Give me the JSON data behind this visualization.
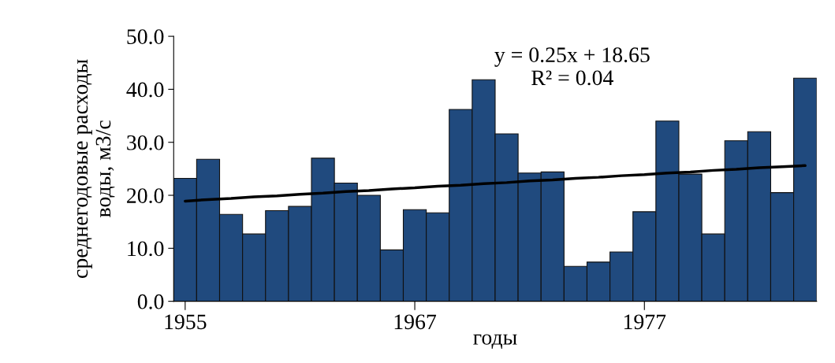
{
  "chart_data": {
    "type": "bar",
    "xlabel": "годы",
    "ylabel": "среднегодовые расходы\nводы, м3/с",
    "categories": [
      "1955",
      null,
      null,
      null,
      null,
      null,
      null,
      null,
      null,
      null,
      "1967",
      null,
      null,
      null,
      null,
      null,
      null,
      null,
      null,
      null,
      "1977",
      null,
      null,
      null,
      null,
      null,
      null,
      null
    ],
    "series": [
      {
        "color": "#204a7e",
        "values": [
          23.2,
          26.8,
          16.4,
          12.7,
          17.1,
          17.9,
          27.0,
          22.3,
          20.0,
          9.7,
          17.3,
          16.7,
          36.2,
          41.8,
          31.6,
          24.2,
          24.4,
          6.6,
          7.4,
          9.3,
          16.9,
          34.0,
          24.0,
          12.7,
          30.3,
          32.0,
          20.5,
          42.1
        ]
      },
      {
        "type": "line",
        "color": "#000000",
        "values": [
          18.9,
          19.2,
          19.4,
          19.7,
          19.9,
          20.2,
          20.4,
          20.7,
          20.9,
          21.2,
          21.4,
          21.7,
          21.9,
          22.2,
          22.4,
          22.7,
          22.9,
          23.2,
          23.4,
          23.7,
          23.9,
          24.2,
          24.4,
          24.7,
          24.9,
          25.2,
          25.4,
          25.6
        ]
      }
    ],
    "annotations": [
      "y = 0.25x + 18.65\nR² = 0.04"
    ],
    "ylim": [
      0,
      50
    ],
    "yticks": [
      {
        "value": 0,
        "label": "0.0"
      },
      {
        "value": 10,
        "label": "10.0"
      },
      {
        "value": 20,
        "label": "20.0"
      },
      {
        "value": 30,
        "label": "30.0"
      },
      {
        "value": 40,
        "label": "40.0"
      },
      {
        "value": 50,
        "label": "50.0"
      }
    ],
    "grid": false,
    "legend": false
  }
}
